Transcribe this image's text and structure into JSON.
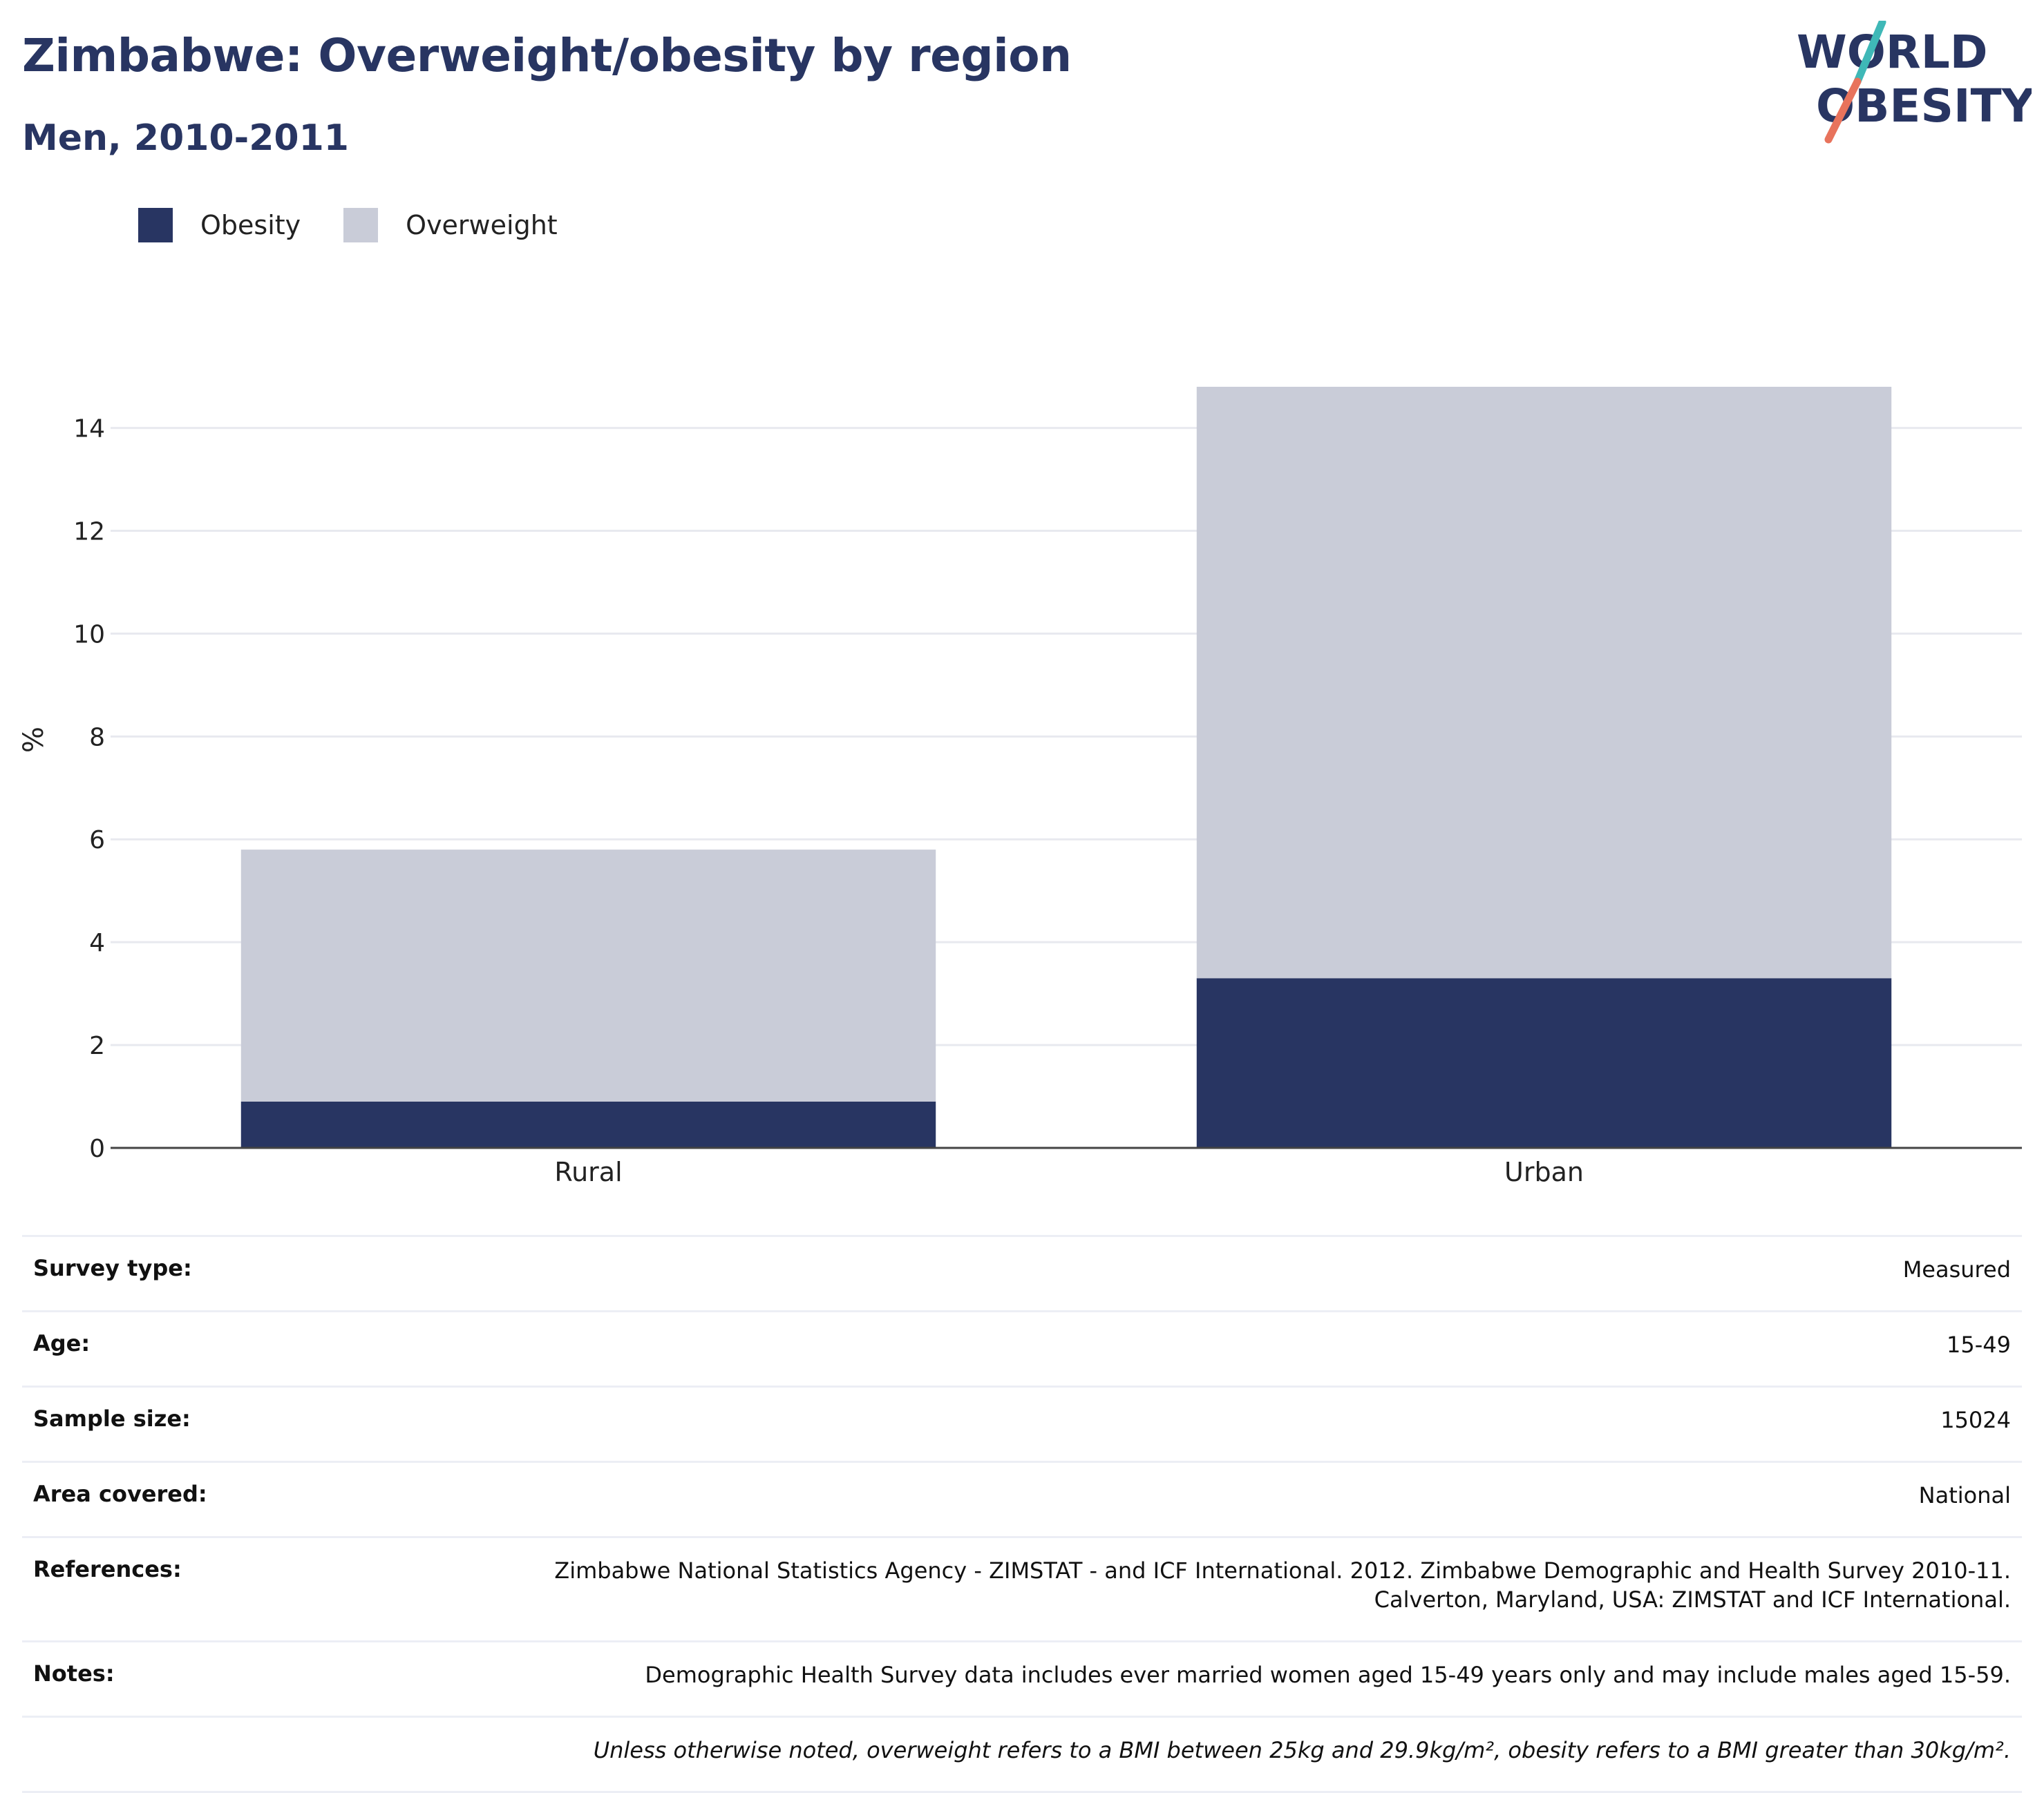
{
  "header": {
    "title": "Zimbabwe: Overweight/obesity by region",
    "subtitle": "Men, 2010-2011"
  },
  "logo": {
    "line1": "WORLD",
    "line2": "OBESITY",
    "colors": {
      "navy": "#283562",
      "teal": "#3fb8b7",
      "coral": "#e8735c"
    }
  },
  "chart_data": {
    "type": "bar",
    "stacked": true,
    "categories": [
      "Rural",
      "Urban"
    ],
    "series": [
      {
        "name": "Obesity",
        "values": [
          0.9,
          3.3
        ],
        "color": "#283562"
      },
      {
        "name": "Overweight",
        "values": [
          4.9,
          11.5
        ],
        "color": "#c9ccd8"
      }
    ],
    "ylabel": "%",
    "xlabel": "",
    "ylim": [
      0,
      14.8
    ],
    "yticks": [
      0,
      2,
      4,
      6,
      8,
      10,
      12,
      14
    ],
    "grid": true,
    "legend": "top-left"
  },
  "info": [
    {
      "label": "Survey type:",
      "value": "Measured"
    },
    {
      "label": "Age:",
      "value": "15-49"
    },
    {
      "label": "Sample size:",
      "value": "15024"
    },
    {
      "label": "Area covered:",
      "value": "National"
    },
    {
      "label": "References:",
      "value": "Zimbabwe National Statistics Agency - ZIMSTAT - and ICF International. 2012. Zimbabwe Demographic and Health Survey 2010-11.",
      "value2": "Calverton, Maryland, USA: ZIMSTAT and ICF International."
    },
    {
      "label": "Notes:",
      "value": "Demographic Health Survey data includes ever married women aged 15-49 years only and may include males aged 15-59."
    },
    {
      "label": "",
      "value": "Unless otherwise noted, overweight refers to a BMI between 25kg and 29.9kg/m², obesity refers to a BMI greater than 30kg/m²."
    }
  ]
}
